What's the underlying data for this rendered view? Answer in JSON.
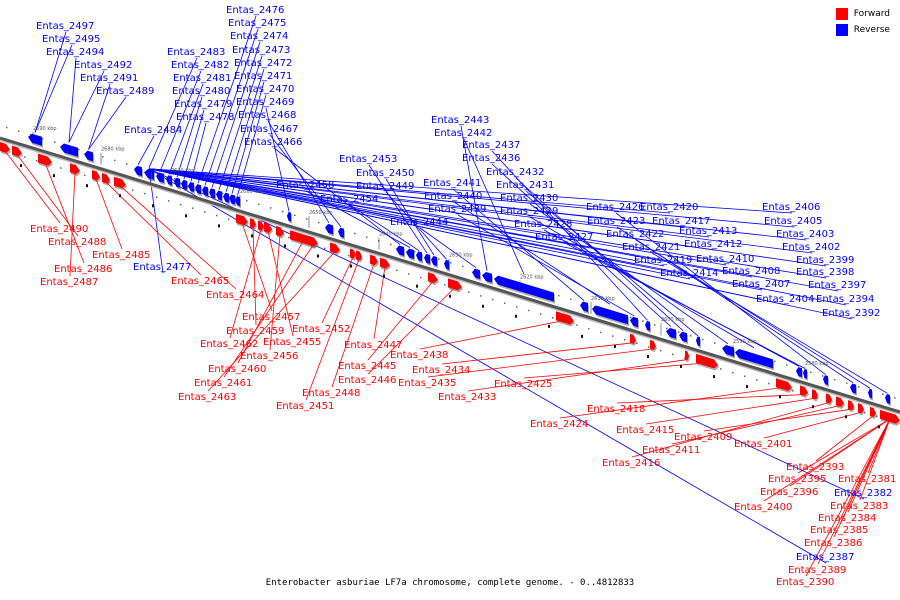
{
  "caption": "Enterobacter asburiae LF7a chromosome, complete genome. - 0..4812833",
  "legend": [
    {
      "label": "Forward",
      "color": "#ff0000"
    },
    {
      "label": "Reverse",
      "color": "#0000ff"
    }
  ],
  "colors": {
    "forward": "#ff0000",
    "reverse": "#0000ff",
    "backbone": "#888888"
  },
  "ticks": [
    "2690 kbp",
    "2680 kbp",
    "2670 kbp",
    "2660 kbp",
    "2650 kbp",
    "2640 kbp",
    "2630 kbp",
    "2620 kbp",
    "2610 kbp",
    "2600 kbp",
    "2590 kbp",
    "2580 kbp"
  ],
  "reverse_labels": [
    "Entas_2497",
    "Entas_2495",
    "Entas_2494",
    "Entas_2492",
    "Entas_2491",
    "Entas_2489",
    "Entas_2484",
    "Entas_2483",
    "Entas_2482",
    "Entas_2481",
    "Entas_2480",
    "Entas_2479",
    "Entas_2478",
    "Entas_2476",
    "Entas_2475",
    "Entas_2474",
    "Entas_2473",
    "Entas_2472",
    "Entas_2471",
    "Entas_2470",
    "Entas_2469",
    "Entas_2468",
    "Entas_2467",
    "Entas_2466",
    "Entas_2458",
    "Entas_2454",
    "Entas_2453",
    "Entas_2450",
    "Entas_2449",
    "Entas_2444",
    "Entas_2443",
    "Entas_2442",
    "Entas_2441",
    "Entas_2440",
    "Entas_2439",
    "Entas_2437",
    "Entas_2436",
    "Entas_2432",
    "Entas_2431",
    "Entas_2430",
    "Entas_2429",
    "Entas_2428",
    "Entas_2427",
    "Entas_2426",
    "Entas_2423",
    "Entas_2422",
    "Entas_2421",
    "Entas_2420",
    "Entas_2419",
    "Entas_2417",
    "Entas_2414",
    "Entas_2413",
    "Entas_2412",
    "Entas_2410",
    "Entas_2408",
    "Entas_2407",
    "Entas_2406",
    "Entas_2405",
    "Entas_2404",
    "Entas_2403",
    "Entas_2402",
    "Entas_2399",
    "Entas_2398",
    "Entas_2397",
    "Entas_2394",
    "Entas_2392",
    "Entas_2477",
    "Entas_2382",
    "Entas_2387"
  ],
  "forward_labels": [
    "Entas_2490",
    "Entas_2488",
    "Entas_2486",
    "Entas_2487",
    "Entas_2485",
    "Entas_2465",
    "Entas_2464",
    "Entas_2457",
    "Entas_2459",
    "Entas_2462",
    "Entas_2455",
    "Entas_2456",
    "Entas_2460",
    "Entas_2461",
    "Entas_2463",
    "Entas_2452",
    "Entas_2451",
    "Entas_2448",
    "Entas_2447",
    "Entas_2445",
    "Entas_2446",
    "Entas_2438",
    "Entas_2434",
    "Entas_2435",
    "Entas_2433",
    "Entas_2425",
    "Entas_2424",
    "Entas_2418",
    "Entas_2415",
    "Entas_2416",
    "Entas_2411",
    "Entas_2409",
    "Entas_2401",
    "Entas_2393",
    "Entas_2395",
    "Entas_2396",
    "Entas_2400",
    "Entas_2381",
    "Entas_2383",
    "Entas_2384",
    "Entas_2385",
    "Entas_2386",
    "Entas_2389",
    "Entas_2390"
  ]
}
